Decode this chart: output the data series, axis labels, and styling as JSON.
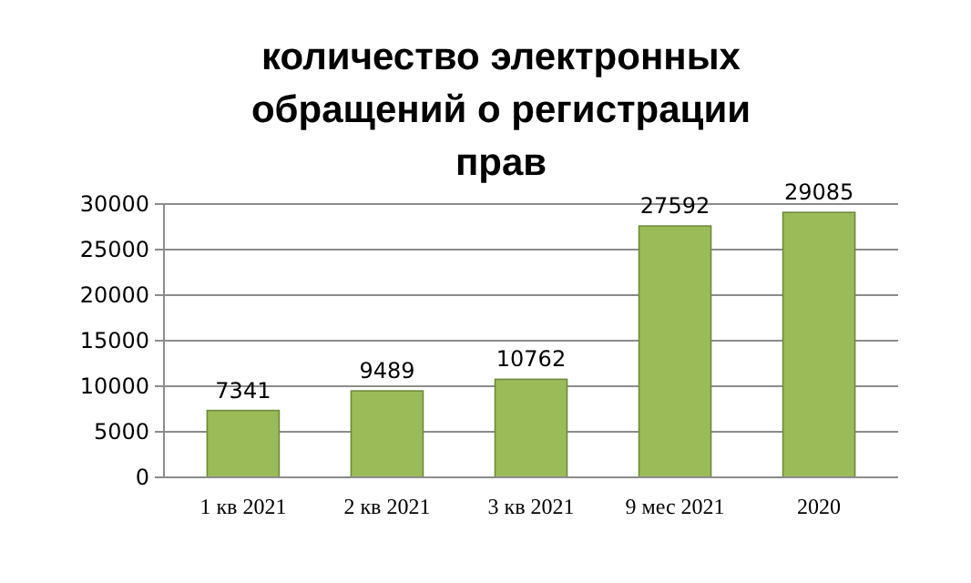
{
  "chart_data": {
    "type": "bar",
    "title": "количество электронных обращений о регистрации прав",
    "categories": [
      "1 кв 2021",
      "2 кв 2021",
      "3 кв 2021",
      "9 мес 2021",
      "2020"
    ],
    "values": [
      7341,
      9489,
      10762,
      27592,
      29085
    ],
    "color": "#9bbb59",
    "ylim": [
      0,
      30000
    ],
    "yticks": [
      0,
      5000,
      10000,
      15000,
      20000,
      25000,
      30000
    ],
    "grid": "y",
    "data_labels": true
  }
}
